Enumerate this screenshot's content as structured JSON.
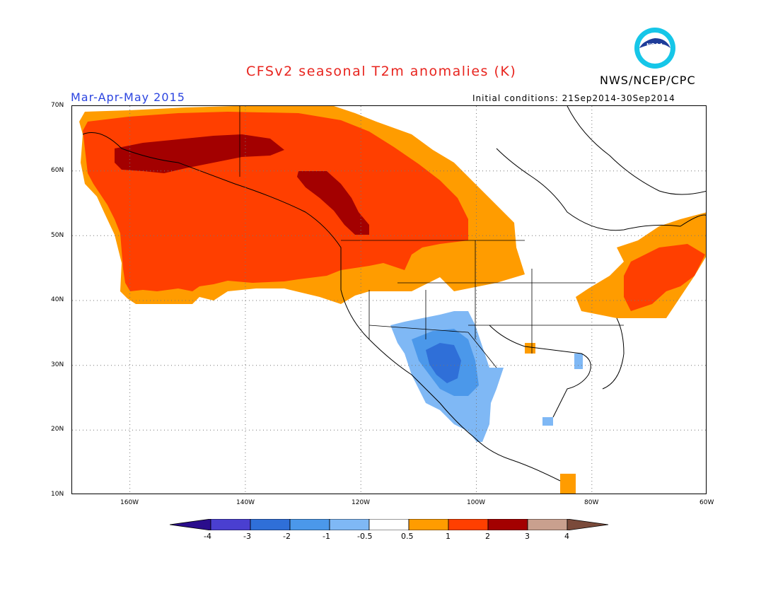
{
  "title": "CFSv2 seasonal T2m anomalies (K)",
  "agency": "NWS/NCEP/CPC",
  "logo_text": "NOAA",
  "season": "Mar-Apr-May 2015",
  "initial_conditions": "Initial conditions: 21Sep2014-30Sep2014",
  "lat_labels": [
    "70N",
    "60N",
    "50N",
    "40N",
    "30N",
    "20N",
    "10N"
  ],
  "lon_labels": [
    "160W",
    "140W",
    "120W",
    "100W",
    "80W",
    "60W"
  ],
  "colorbar": {
    "labels": [
      "-4",
      "-3",
      "-2",
      "-1",
      "-0.5",
      "0.5",
      "1",
      "2",
      "3",
      "4"
    ],
    "colors": [
      "#2a0d8c",
      "#4a3fd0",
      "#2f6fd8",
      "#4b98ea",
      "#7fb8f5",
      "#ffffff",
      "#ff9c00",
      "#ff3f00",
      "#a30000",
      "#c9a08e",
      "#7a4a3a"
    ]
  },
  "anomaly_colors": {
    "warm_1": "#ff9c00",
    "warm_2": "#ff3f00",
    "warm_3": "#a30000",
    "cool_1": "#7fb8f5",
    "cool_2": "#4b98ea",
    "cool_3": "#2f6fd8"
  }
}
